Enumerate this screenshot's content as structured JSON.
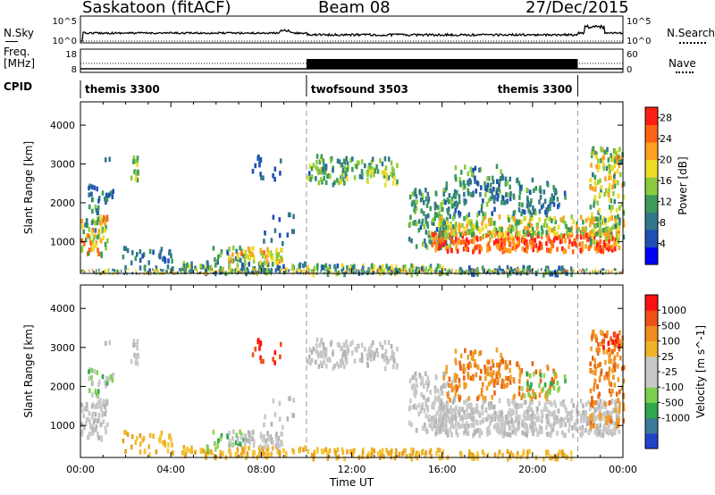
{
  "header": {
    "station": "Saskatoon (fitACF)",
    "beam": "Beam 08",
    "date": "27/Dec/2015"
  },
  "top_panels": {
    "nsky_label": "N.Sky",
    "nsearch_label": "N.Search",
    "nsky_ticks": [
      "10^5",
      "10^0"
    ],
    "nsearch_ticks": [
      "10^5",
      "10^0"
    ],
    "freq_label": "Freq.",
    "freq_unit": "[MHz]",
    "freq_ticks": [
      "18",
      "8"
    ],
    "nave_label": "Nave",
    "nave_ticks": [
      "60",
      "0"
    ],
    "cpid_label": "CPID",
    "cpid_segments": [
      {
        "name": "themis 3300",
        "start": 0,
        "end": 10
      },
      {
        "name": "twofsound 3503",
        "start": 10,
        "end": 22
      },
      {
        "name": "themis 3300",
        "start": 22,
        "end": 24
      }
    ]
  },
  "colors": {
    "power": [
      "#0000ff",
      "#1e50b4",
      "#32788c",
      "#3c9a5a",
      "#8ccc3c",
      "#f0dc28",
      "#ffa01e",
      "#ff6414",
      "#ff1e14"
    ],
    "velocity": [
      "#2244cc",
      "#3c7a9a",
      "#2ea84a",
      "#7cd050",
      "#c8c8c8",
      "#c8c8c8",
      "#f0b428",
      "#f08c1e",
      "#f05014",
      "#ff1010"
    ]
  },
  "chart_data": [
    {
      "type": "heatmap",
      "name": "power",
      "xlabel": "",
      "ylabel": "Slant Range [km]",
      "xlim": [
        0,
        24
      ],
      "ylim": [
        180,
        4600
      ],
      "yticks": [
        "1000",
        "2000",
        "3000",
        "4000"
      ],
      "colorbar": {
        "label": "Power [dB]",
        "ticks": [
          "28",
          "24",
          "20",
          "16",
          "12",
          "8",
          "4"
        ],
        "range": [
          0,
          30
        ]
      },
      "grid": false
    },
    {
      "type": "heatmap",
      "name": "velocity",
      "xlabel": "Time UT",
      "ylabel": "Slant Range [km]",
      "xlim": [
        0,
        24
      ],
      "ylim": [
        180,
        4600
      ],
      "xticks": [
        "00:00",
        "04:00",
        "08:00",
        "12:00",
        "16:00",
        "20:00",
        "00:00"
      ],
      "yticks": [
        "1000",
        "2000",
        "3000",
        "4000"
      ],
      "colorbar": {
        "label": "Velocity [m s^-1]",
        "ticks": [
          "1000",
          "500",
          "100",
          "25",
          "-25",
          "-100",
          "-500",
          "-1000"
        ]
      },
      "grid": false
    }
  ]
}
